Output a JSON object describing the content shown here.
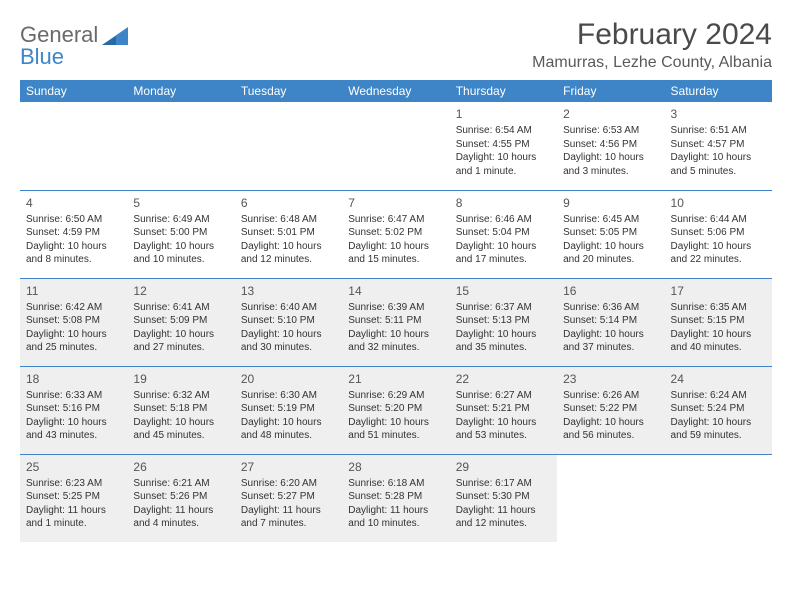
{
  "logo": {
    "text_gray": "General",
    "text_blue": "Blue"
  },
  "header": {
    "title": "February 2024",
    "location": "Mamurras, Lezhe County, Albania"
  },
  "colors": {
    "header_bg": "#3d85c6",
    "header_text": "#ffffff",
    "grid_line": "#3d85c6",
    "shaded_bg": "#efefef",
    "logo_gray": "#6a6a6a",
    "logo_blue": "#3d85c6",
    "title_color": "#4a4a4a",
    "body_text": "#333333"
  },
  "calendar": {
    "type": "table",
    "columns": [
      "Sunday",
      "Monday",
      "Tuesday",
      "Wednesday",
      "Thursday",
      "Friday",
      "Saturday"
    ],
    "weeks": [
      [
        null,
        null,
        null,
        null,
        {
          "day": "1",
          "sunrise": "Sunrise: 6:54 AM",
          "sunset": "Sunset: 4:55 PM",
          "daylight": "Daylight: 10 hours and 1 minute."
        },
        {
          "day": "2",
          "sunrise": "Sunrise: 6:53 AM",
          "sunset": "Sunset: 4:56 PM",
          "daylight": "Daylight: 10 hours and 3 minutes."
        },
        {
          "day": "3",
          "sunrise": "Sunrise: 6:51 AM",
          "sunset": "Sunset: 4:57 PM",
          "daylight": "Daylight: 10 hours and 5 minutes."
        }
      ],
      [
        {
          "day": "4",
          "sunrise": "Sunrise: 6:50 AM",
          "sunset": "Sunset: 4:59 PM",
          "daylight": "Daylight: 10 hours and 8 minutes."
        },
        {
          "day": "5",
          "sunrise": "Sunrise: 6:49 AM",
          "sunset": "Sunset: 5:00 PM",
          "daylight": "Daylight: 10 hours and 10 minutes."
        },
        {
          "day": "6",
          "sunrise": "Sunrise: 6:48 AM",
          "sunset": "Sunset: 5:01 PM",
          "daylight": "Daylight: 10 hours and 12 minutes."
        },
        {
          "day": "7",
          "sunrise": "Sunrise: 6:47 AM",
          "sunset": "Sunset: 5:02 PM",
          "daylight": "Daylight: 10 hours and 15 minutes."
        },
        {
          "day": "8",
          "sunrise": "Sunrise: 6:46 AM",
          "sunset": "Sunset: 5:04 PM",
          "daylight": "Daylight: 10 hours and 17 minutes."
        },
        {
          "day": "9",
          "sunrise": "Sunrise: 6:45 AM",
          "sunset": "Sunset: 5:05 PM",
          "daylight": "Daylight: 10 hours and 20 minutes."
        },
        {
          "day": "10",
          "sunrise": "Sunrise: 6:44 AM",
          "sunset": "Sunset: 5:06 PM",
          "daylight": "Daylight: 10 hours and 22 minutes."
        }
      ],
      [
        {
          "day": "11",
          "sunrise": "Sunrise: 6:42 AM",
          "sunset": "Sunset: 5:08 PM",
          "daylight": "Daylight: 10 hours and 25 minutes.",
          "shaded": true
        },
        {
          "day": "12",
          "sunrise": "Sunrise: 6:41 AM",
          "sunset": "Sunset: 5:09 PM",
          "daylight": "Daylight: 10 hours and 27 minutes.",
          "shaded": true
        },
        {
          "day": "13",
          "sunrise": "Sunrise: 6:40 AM",
          "sunset": "Sunset: 5:10 PM",
          "daylight": "Daylight: 10 hours and 30 minutes.",
          "shaded": true
        },
        {
          "day": "14",
          "sunrise": "Sunrise: 6:39 AM",
          "sunset": "Sunset: 5:11 PM",
          "daylight": "Daylight: 10 hours and 32 minutes.",
          "shaded": true
        },
        {
          "day": "15",
          "sunrise": "Sunrise: 6:37 AM",
          "sunset": "Sunset: 5:13 PM",
          "daylight": "Daylight: 10 hours and 35 minutes.",
          "shaded": true
        },
        {
          "day": "16",
          "sunrise": "Sunrise: 6:36 AM",
          "sunset": "Sunset: 5:14 PM",
          "daylight": "Daylight: 10 hours and 37 minutes.",
          "shaded": true
        },
        {
          "day": "17",
          "sunrise": "Sunrise: 6:35 AM",
          "sunset": "Sunset: 5:15 PM",
          "daylight": "Daylight: 10 hours and 40 minutes.",
          "shaded": true
        }
      ],
      [
        {
          "day": "18",
          "sunrise": "Sunrise: 6:33 AM",
          "sunset": "Sunset: 5:16 PM",
          "daylight": "Daylight: 10 hours and 43 minutes.",
          "shaded": true
        },
        {
          "day": "19",
          "sunrise": "Sunrise: 6:32 AM",
          "sunset": "Sunset: 5:18 PM",
          "daylight": "Daylight: 10 hours and 45 minutes.",
          "shaded": true
        },
        {
          "day": "20",
          "sunrise": "Sunrise: 6:30 AM",
          "sunset": "Sunset: 5:19 PM",
          "daylight": "Daylight: 10 hours and 48 minutes.",
          "shaded": true
        },
        {
          "day": "21",
          "sunrise": "Sunrise: 6:29 AM",
          "sunset": "Sunset: 5:20 PM",
          "daylight": "Daylight: 10 hours and 51 minutes.",
          "shaded": true
        },
        {
          "day": "22",
          "sunrise": "Sunrise: 6:27 AM",
          "sunset": "Sunset: 5:21 PM",
          "daylight": "Daylight: 10 hours and 53 minutes.",
          "shaded": true
        },
        {
          "day": "23",
          "sunrise": "Sunrise: 6:26 AM",
          "sunset": "Sunset: 5:22 PM",
          "daylight": "Daylight: 10 hours and 56 minutes.",
          "shaded": true
        },
        {
          "day": "24",
          "sunrise": "Sunrise: 6:24 AM",
          "sunset": "Sunset: 5:24 PM",
          "daylight": "Daylight: 10 hours and 59 minutes.",
          "shaded": true
        }
      ],
      [
        {
          "day": "25",
          "sunrise": "Sunrise: 6:23 AM",
          "sunset": "Sunset: 5:25 PM",
          "daylight": "Daylight: 11 hours and 1 minute.",
          "shaded": true
        },
        {
          "day": "26",
          "sunrise": "Sunrise: 6:21 AM",
          "sunset": "Sunset: 5:26 PM",
          "daylight": "Daylight: 11 hours and 4 minutes.",
          "shaded": true
        },
        {
          "day": "27",
          "sunrise": "Sunrise: 6:20 AM",
          "sunset": "Sunset: 5:27 PM",
          "daylight": "Daylight: 11 hours and 7 minutes.",
          "shaded": true
        },
        {
          "day": "28",
          "sunrise": "Sunrise: 6:18 AM",
          "sunset": "Sunset: 5:28 PM",
          "daylight": "Daylight: 11 hours and 10 minutes.",
          "shaded": true
        },
        {
          "day": "29",
          "sunrise": "Sunrise: 6:17 AM",
          "sunset": "Sunset: 5:30 PM",
          "daylight": "Daylight: 11 hours and 12 minutes.",
          "shaded": true
        },
        null,
        null
      ]
    ]
  }
}
